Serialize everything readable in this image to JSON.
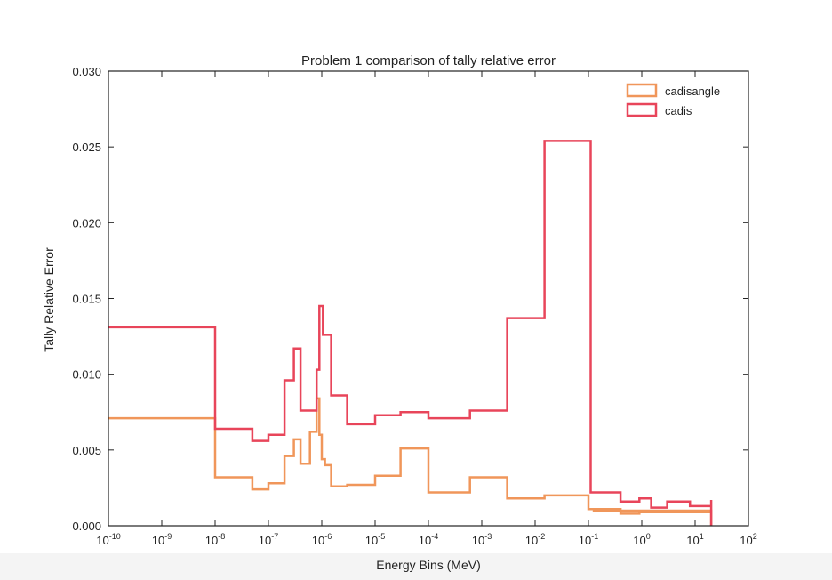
{
  "chart_data": {
    "type": "line",
    "step": true,
    "title": "Problem 1 comparison of tally relative error",
    "xlabel": "Energy Bins (MeV)",
    "ylabel": "Tally Relative Error",
    "xscale": "log",
    "xlim": [
      1e-10,
      100
    ],
    "ylim": [
      0,
      0.03
    ],
    "x_ticks": [
      {
        "value": 1e-10,
        "base": "10",
        "exp": "-10"
      },
      {
        "value": 1e-09,
        "base": "10",
        "exp": "-9"
      },
      {
        "value": 1e-08,
        "base": "10",
        "exp": "-8"
      },
      {
        "value": 1e-07,
        "base": "10",
        "exp": "-7"
      },
      {
        "value": 1e-06,
        "base": "10",
        "exp": "-6"
      },
      {
        "value": 1e-05,
        "base": "10",
        "exp": "-5"
      },
      {
        "value": 0.0001,
        "base": "10",
        "exp": "-4"
      },
      {
        "value": 0.001,
        "base": "10",
        "exp": "-3"
      },
      {
        "value": 0.01,
        "base": "10",
        "exp": "-2"
      },
      {
        "value": 0.1,
        "base": "10",
        "exp": "-1"
      },
      {
        "value": 1,
        "base": "10",
        "exp": "0"
      },
      {
        "value": 10,
        "base": "10",
        "exp": "1"
      },
      {
        "value": 100,
        "base": "10",
        "exp": "2"
      }
    ],
    "y_ticks": [
      {
        "value": 0.0,
        "label": "0.000"
      },
      {
        "value": 0.005,
        "label": "0.005"
      },
      {
        "value": 0.01,
        "label": "0.010"
      },
      {
        "value": 0.015,
        "label": "0.015"
      },
      {
        "value": 0.02,
        "label": "0.020"
      },
      {
        "value": 0.025,
        "label": "0.025"
      },
      {
        "value": 0.03,
        "label": "0.030"
      }
    ],
    "legend_position": "top-right",
    "series": [
      {
        "name": "cadisangle",
        "color": "#f0965a",
        "x": [
          1e-10,
          1e-08,
          5e-08,
          1e-07,
          2e-07,
          3e-07,
          4e-07,
          6e-07,
          8e-07,
          9e-07,
          1e-06,
          1.15e-06,
          1.5e-06,
          3e-06,
          1e-05,
          3e-05,
          0.0001,
          0.0006,
          0.003,
          0.015,
          0.1,
          0.4,
          0.9,
          0.12
        ],
        "y": [
          0.0071,
          0.0032,
          0.0024,
          0.0028,
          0.0046,
          0.0057,
          0.0041,
          0.0062,
          0.0084,
          0.006,
          0.0044,
          0.004,
          0.0026,
          0.0027,
          0.0033,
          0.0051,
          0.0022,
          0.0032,
          0.0018,
          0.002,
          0.0011,
          0.0008,
          0.0009,
          0.001
        ]
      },
      {
        "name": "cadis",
        "color": "#e8455a",
        "x": [
          1e-10,
          1e-08,
          5e-08,
          1e-07,
          2e-07,
          3e-07,
          4e-07,
          8e-07,
          9e-07,
          1.05e-06,
          1.5e-06,
          3e-06,
          1e-05,
          3e-05,
          0.0001,
          0.0006,
          0.003,
          0.015,
          0.11,
          0.4,
          0.9,
          1.5,
          3,
          8,
          20
        ],
        "y": [
          0.0131,
          0.0064,
          0.0056,
          0.006,
          0.0096,
          0.0117,
          0.0076,
          0.0103,
          0.0145,
          0.0126,
          0.0086,
          0.0067,
          0.0073,
          0.0075,
          0.0071,
          0.0076,
          0.0137,
          0.0254,
          0.0022,
          0.0016,
          0.0018,
          0.0012,
          0.0016,
          0.0013,
          0.0017
        ]
      }
    ]
  }
}
